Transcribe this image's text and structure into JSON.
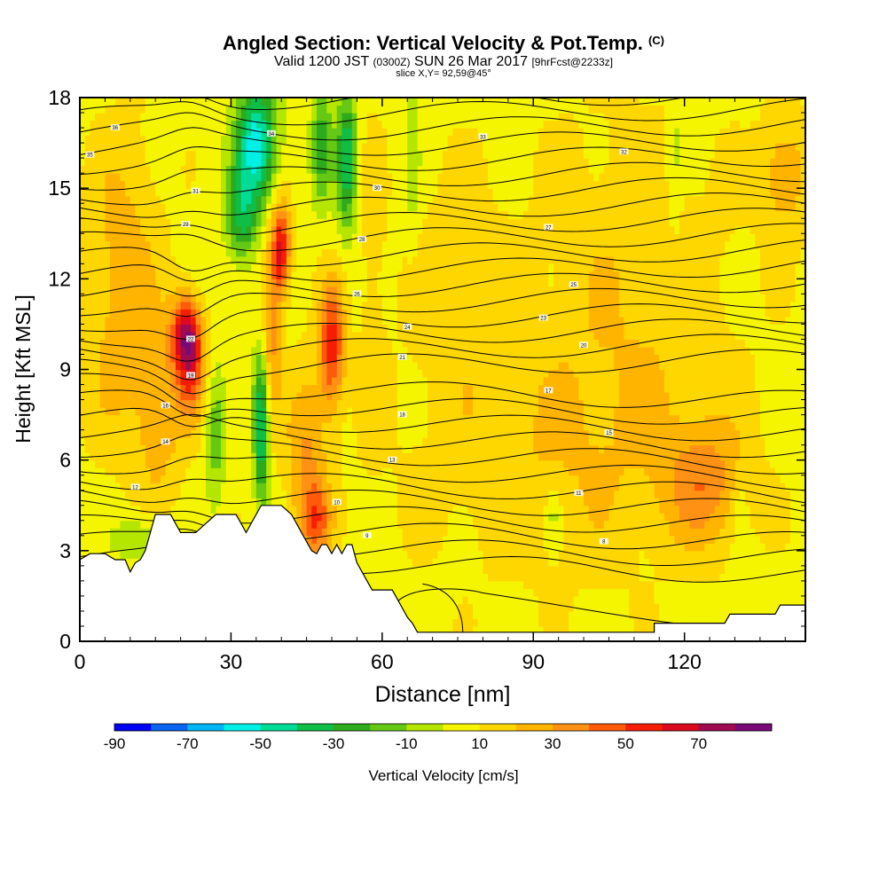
{
  "header": {
    "title": "Angled Section: Vertical Velocity & Pot.Temp.",
    "title_unit": "(C)",
    "valid_prefix": "Valid 1200 JST",
    "valid_utc": "(0300Z)",
    "valid_date": "SUN 26 Mar 2017",
    "forecast_info": "[9hrFcst@2233z]",
    "slice_info": "slice X,Y= 92,59@45°"
  },
  "chart_data": {
    "type": "heatmap",
    "xlabel": "Distance [nm]",
    "ylabel": "Height [Kft MSL]",
    "xlim": [
      0,
      144
    ],
    "ylim": [
      0,
      18
    ],
    "xticks": [
      0,
      30,
      60,
      90,
      120
    ],
    "yticks": [
      0,
      3,
      6,
      9,
      12,
      15,
      18
    ],
    "colorbar": {
      "title": "Vertical Velocity [cm/s]",
      "labels": [
        "-90",
        "-70",
        "-50",
        "-30",
        "-10",
        "10",
        "30",
        "50",
        "70"
      ],
      "levels": [
        -90,
        -80,
        -70,
        -60,
        -50,
        -40,
        -30,
        -20,
        -10,
        0,
        10,
        20,
        30,
        40,
        50,
        60,
        70,
        80
      ],
      "colors": [
        "#0000f5",
        "#0a64f0",
        "#00b4f5",
        "#00f0e6",
        "#00dc96",
        "#0fbe46",
        "#2daa1e",
        "#64c814",
        "#b4e600",
        "#f5f500",
        "#ffd700",
        "#ffb400",
        "#ff9114",
        "#ff5a0a",
        "#f51e00",
        "#dc0a1e",
        "#a00a50",
        "#780a78"
      ]
    },
    "terrain": [
      [
        0,
        2.7
      ],
      [
        2,
        2.9
      ],
      [
        5,
        2.9
      ],
      [
        7,
        2.7
      ],
      [
        9,
        2.7
      ],
      [
        10,
        2.3
      ],
      [
        11,
        2.6
      ],
      [
        12,
        2.7
      ],
      [
        13,
        3.0
      ],
      [
        14,
        3.6
      ],
      [
        15,
        4.2
      ],
      [
        18,
        4.2
      ],
      [
        19,
        3.9
      ],
      [
        20,
        3.6
      ],
      [
        23,
        3.6
      ],
      [
        25,
        3.9
      ],
      [
        27,
        4.2
      ],
      [
        31,
        4.2
      ],
      [
        32,
        3.9
      ],
      [
        33,
        3.6
      ],
      [
        34,
        3.9
      ],
      [
        35,
        4.2
      ],
      [
        36,
        4.5
      ],
      [
        40,
        4.5
      ],
      [
        42,
        4.2
      ],
      [
        43,
        3.9
      ],
      [
        44,
        3.6
      ],
      [
        45,
        3.3
      ],
      [
        46,
        3.0
      ],
      [
        47,
        2.9
      ],
      [
        48,
        3.2
      ],
      [
        49,
        3.2
      ],
      [
        50,
        2.9
      ],
      [
        51,
        3.2
      ],
      [
        52,
        2.9
      ],
      [
        53,
        3.2
      ],
      [
        54,
        3.2
      ],
      [
        55,
        2.6
      ],
      [
        56,
        2.3
      ],
      [
        57,
        2.0
      ],
      [
        58,
        1.7
      ],
      [
        62,
        1.7
      ],
      [
        63,
        1.4
      ],
      [
        64,
        1.1
      ],
      [
        65,
        0.8
      ],
      [
        66,
        0.6
      ],
      [
        67,
        0.3
      ],
      [
        70,
        0.3
      ],
      [
        100,
        0.3
      ],
      [
        110,
        0.3
      ],
      [
        114,
        0.3
      ],
      [
        114,
        0.6
      ],
      [
        128,
        0.6
      ],
      [
        129,
        0.9
      ],
      [
        138,
        0.9
      ],
      [
        139,
        1.2
      ],
      [
        144,
        1.2
      ]
    ],
    "contour_labels": [
      {
        "x": 7,
        "y": 17.0,
        "text": "36"
      },
      {
        "x": 2,
        "y": 16.1,
        "text": "35"
      },
      {
        "x": 38,
        "y": 16.8,
        "text": "34"
      },
      {
        "x": 80,
        "y": 16.7,
        "text": "33"
      },
      {
        "x": 108,
        "y": 16.2,
        "text": "32"
      },
      {
        "x": 23,
        "y": 14.9,
        "text": "31"
      },
      {
        "x": 59,
        "y": 15.0,
        "text": "30"
      },
      {
        "x": 21,
        "y": 13.8,
        "text": "29"
      },
      {
        "x": 56,
        "y": 13.3,
        "text": "28"
      },
      {
        "x": 93,
        "y": 13.7,
        "text": "27"
      },
      {
        "x": 55,
        "y": 11.5,
        "text": "26"
      },
      {
        "x": 98,
        "y": 11.8,
        "text": "25"
      },
      {
        "x": 65,
        "y": 10.4,
        "text": "24"
      },
      {
        "x": 92,
        "y": 10.7,
        "text": "23"
      },
      {
        "x": 22,
        "y": 10.0,
        "text": "22"
      },
      {
        "x": 64,
        "y": 9.4,
        "text": "21"
      },
      {
        "x": 100,
        "y": 9.8,
        "text": "20"
      },
      {
        "x": 22,
        "y": 8.8,
        "text": "19"
      },
      {
        "x": 64,
        "y": 7.5,
        "text": "18"
      },
      {
        "x": 93,
        "y": 8.3,
        "text": "17"
      },
      {
        "x": 17,
        "y": 7.8,
        "text": "16"
      },
      {
        "x": 105,
        "y": 6.9,
        "text": "15"
      },
      {
        "x": 17,
        "y": 6.6,
        "text": "14"
      },
      {
        "x": 62,
        "y": 6.0,
        "text": "13"
      },
      {
        "x": 11,
        "y": 5.1,
        "text": "12"
      },
      {
        "x": 99,
        "y": 4.9,
        "text": "11"
      },
      {
        "x": 51,
        "y": 4.6,
        "text": "10"
      },
      {
        "x": 57,
        "y": 3.5,
        "text": "9"
      },
      {
        "x": 104,
        "y": 3.3,
        "text": "8"
      }
    ],
    "grid": false
  }
}
